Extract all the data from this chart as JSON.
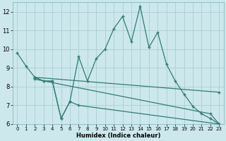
{
  "xlabel": "Humidex (Indice chaleur)",
  "bg_color": "#cce8ed",
  "grid_color": "#aacdd4",
  "line_color": "#2e7d72",
  "xlim": [
    -0.5,
    23.5
  ],
  "ylim": [
    6,
    12.5
  ],
  "yticks": [
    6,
    7,
    8,
    9,
    10,
    11,
    12
  ],
  "xticks": [
    0,
    1,
    2,
    3,
    4,
    5,
    6,
    7,
    8,
    9,
    10,
    11,
    12,
    13,
    14,
    15,
    16,
    17,
    18,
    19,
    20,
    21,
    22,
    23
  ],
  "lines": [
    {
      "x": [
        0,
        1,
        2,
        3,
        4,
        5,
        6,
        7,
        8,
        9,
        10,
        11,
        12,
        13,
        14,
        15,
        16,
        17,
        18,
        19,
        20,
        21,
        22,
        23
      ],
      "y": [
        9.8,
        9.1,
        8.5,
        8.3,
        8.3,
        6.3,
        7.2,
        9.6,
        8.3,
        9.5,
        10.0,
        11.1,
        11.75,
        10.4,
        12.3,
        10.1,
        10.9,
        9.2,
        8.3,
        7.6,
        6.95,
        6.55,
        6.3,
        6.0
      ]
    },
    {
      "x": [
        2,
        3,
        4,
        5,
        6,
        7,
        23
      ],
      "y": [
        8.5,
        8.3,
        8.3,
        6.3,
        7.2,
        7.0,
        6.0
      ]
    },
    {
      "x": [
        2,
        23
      ],
      "y": [
        8.5,
        7.7
      ]
    },
    {
      "x": [
        2,
        22,
        23
      ],
      "y": [
        8.4,
        6.55,
        6.0
      ]
    }
  ]
}
